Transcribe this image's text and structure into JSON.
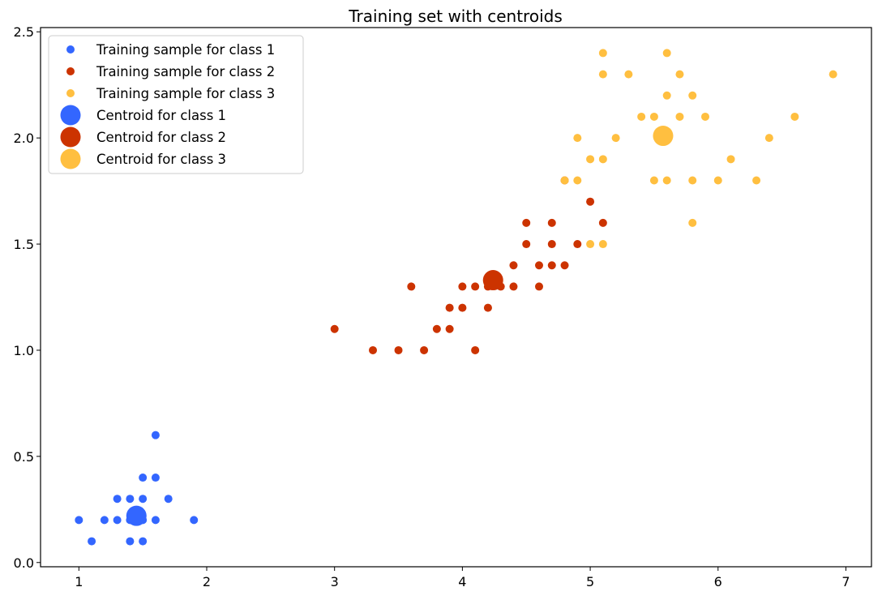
{
  "chart_data": {
    "type": "scatter",
    "title": "Training set with centroids",
    "xlabel": "",
    "ylabel": "",
    "xlim": [
      0.7,
      7.2
    ],
    "ylim": [
      -0.02,
      2.52
    ],
    "x_ticks": [
      1,
      2,
      3,
      4,
      5,
      6,
      7
    ],
    "y_ticks": [
      0.0,
      0.5,
      1.0,
      1.5,
      2.0,
      2.5
    ],
    "x_tick_labels": [
      "1",
      "2",
      "3",
      "4",
      "5",
      "6",
      "7"
    ],
    "y_tick_labels": [
      "0.0",
      "0.5",
      "1.0",
      "1.5",
      "2.0",
      "2.5"
    ],
    "grid": false,
    "legend_position": "top-left",
    "series": [
      {
        "name": "Training sample for class 1",
        "color": "#3366ff",
        "marker": "small-dot",
        "points": [
          [
            1.0,
            0.2
          ],
          [
            1.1,
            0.1
          ],
          [
            1.2,
            0.2
          ],
          [
            1.3,
            0.2
          ],
          [
            1.3,
            0.3
          ],
          [
            1.4,
            0.1
          ],
          [
            1.4,
            0.2
          ],
          [
            1.4,
            0.3
          ],
          [
            1.5,
            0.1
          ],
          [
            1.5,
            0.2
          ],
          [
            1.5,
            0.3
          ],
          [
            1.5,
            0.4
          ],
          [
            1.6,
            0.2
          ],
          [
            1.6,
            0.4
          ],
          [
            1.6,
            0.6
          ],
          [
            1.7,
            0.3
          ],
          [
            1.9,
            0.2
          ],
          [
            1.45,
            0.2
          ]
        ]
      },
      {
        "name": "Training sample for class 2",
        "color": "#cc3300",
        "marker": "small-dot",
        "points": [
          [
            3.0,
            1.1
          ],
          [
            3.3,
            1.0
          ],
          [
            3.5,
            1.0
          ],
          [
            3.6,
            1.3
          ],
          [
            3.7,
            1.0
          ],
          [
            3.8,
            1.1
          ],
          [
            3.9,
            1.1
          ],
          [
            3.9,
            1.2
          ],
          [
            4.0,
            1.2
          ],
          [
            4.0,
            1.3
          ],
          [
            4.1,
            1.0
          ],
          [
            4.1,
            1.3
          ],
          [
            4.2,
            1.2
          ],
          [
            4.2,
            1.3
          ],
          [
            4.3,
            1.3
          ],
          [
            4.4,
            1.3
          ],
          [
            4.4,
            1.4
          ],
          [
            4.5,
            1.5
          ],
          [
            4.5,
            1.6
          ],
          [
            4.6,
            1.3
          ],
          [
            4.6,
            1.4
          ],
          [
            4.7,
            1.4
          ],
          [
            4.7,
            1.5
          ],
          [
            4.7,
            1.6
          ],
          [
            4.8,
            1.4
          ],
          [
            4.8,
            1.8
          ],
          [
            4.9,
            1.5
          ],
          [
            5.0,
            1.7
          ],
          [
            5.1,
            1.6
          ]
        ]
      },
      {
        "name": "Training sample for class 3",
        "color": "#ffbf40",
        "marker": "small-dot",
        "points": [
          [
            4.8,
            1.8
          ],
          [
            4.9,
            1.8
          ],
          [
            4.9,
            2.0
          ],
          [
            5.0,
            1.5
          ],
          [
            5.0,
            1.9
          ],
          [
            5.1,
            1.5
          ],
          [
            5.1,
            1.9
          ],
          [
            5.1,
            2.3
          ],
          [
            5.1,
            2.4
          ],
          [
            5.2,
            2.0
          ],
          [
            5.3,
            2.3
          ],
          [
            5.4,
            2.1
          ],
          [
            5.5,
            1.8
          ],
          [
            5.5,
            2.1
          ],
          [
            5.6,
            1.8
          ],
          [
            5.6,
            2.2
          ],
          [
            5.6,
            2.4
          ],
          [
            5.7,
            2.1
          ],
          [
            5.7,
            2.3
          ],
          [
            5.8,
            1.6
          ],
          [
            5.8,
            1.8
          ],
          [
            5.8,
            2.2
          ],
          [
            5.9,
            2.1
          ],
          [
            6.0,
            1.8
          ],
          [
            6.1,
            1.9
          ],
          [
            6.3,
            1.8
          ],
          [
            6.4,
            2.0
          ],
          [
            6.6,
            2.1
          ],
          [
            6.9,
            2.3
          ]
        ]
      },
      {
        "name": "Centroid for class 1",
        "color": "#3366ff",
        "marker": "large-dot",
        "points": [
          [
            1.45,
            0.22
          ]
        ]
      },
      {
        "name": "Centroid for class 2",
        "color": "#cc3300",
        "marker": "large-dot",
        "points": [
          [
            4.24,
            1.33
          ]
        ]
      },
      {
        "name": "Centroid for class 3",
        "color": "#ffbf40",
        "marker": "large-dot",
        "points": [
          [
            5.57,
            2.01
          ]
        ]
      }
    ]
  }
}
